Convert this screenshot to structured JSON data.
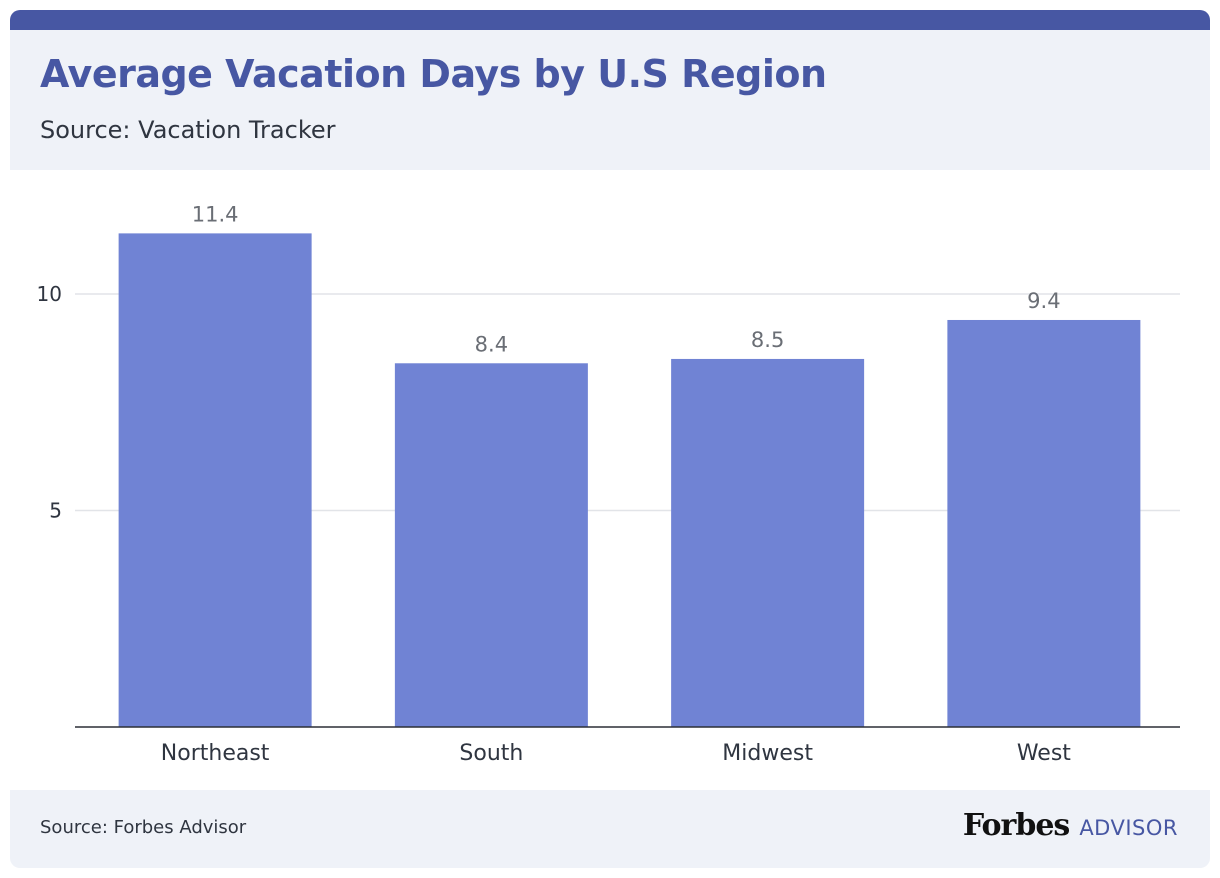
{
  "header": {
    "title": "Average Vacation Days by U.S Region",
    "subtitle": "Source: Vacation Tracker"
  },
  "footer": {
    "source": "Source: Forbes Advisor",
    "brand_name": "Forbes",
    "brand_suffix": "ADVISOR"
  },
  "colors": {
    "accent": "#4757a3",
    "bar": "#7083d4",
    "background_panel": "#eff2f8"
  },
  "chart_data": {
    "type": "bar",
    "categories": [
      "Northeast",
      "South",
      "Midwest",
      "West"
    ],
    "values": [
      11.4,
      8.4,
      8.5,
      9.4
    ],
    "value_labels": [
      "11.4",
      "8.4",
      "8.5",
      "9.4"
    ],
    "yticks": [
      5,
      10
    ],
    "ylim": [
      0,
      12.5
    ],
    "xlabel": "",
    "ylabel": "",
    "grid": true,
    "legend": "none"
  }
}
